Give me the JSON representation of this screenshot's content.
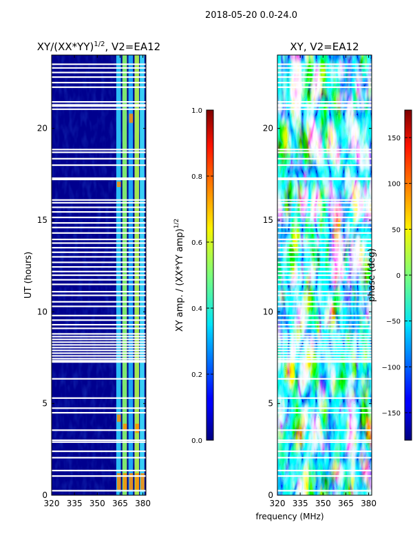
{
  "chart_data": {
    "suptitle": "2018-05-20 0.0-24.0",
    "xlabel": "frequency (MHz)",
    "panels": [
      {
        "type": "heatmap",
        "title_main": "XY/(XX*YY)",
        "title_sup": "1/2",
        "title_rest": ", V2=EA12",
        "ylabel": "UT (hours)",
        "xlim": [
          320,
          382
        ],
        "ylim": [
          0,
          24
        ],
        "xticks": [
          320,
          335,
          350,
          365,
          380
        ],
        "yticks": [
          0,
          5,
          10,
          15,
          20
        ],
        "colorbar": {
          "label_main": "XY amp. / (XX*YY amp)",
          "label_sup": "1/2",
          "range": [
            0.0,
            1.0
          ],
          "ticks": [
            "0.0",
            "0.2",
            "0.4",
            "0.6",
            "0.8",
            "1.0"
          ],
          "tick_values": [
            0.0,
            0.2,
            0.4,
            0.6,
            0.8,
            1.0
          ]
        }
      },
      {
        "type": "heatmap",
        "title": "XY, V2=EA12",
        "xlim": [
          320,
          382
        ],
        "ylim": [
          0,
          24
        ],
        "xticks": [
          320,
          335,
          350,
          365,
          380
        ],
        "yticks": [
          0,
          5,
          10,
          15,
          20
        ],
        "colorbar": {
          "label": "phase (deg)",
          "range": [
            -180,
            180
          ],
          "ticks": [
            "−150",
            "−100",
            "−50",
            "0",
            "50",
            "100",
            "150"
          ],
          "tick_values": [
            -150,
            -100,
            -50,
            0,
            50,
            100,
            150
          ]
        }
      }
    ],
    "flagged_ut_hours": [
      0.25,
      1.05,
      1.35,
      2.05,
      2.4,
      2.9,
      3.0,
      3.55,
      4.5,
      4.75,
      5.3,
      6.35,
      7.3,
      7.45,
      7.6,
      7.75,
      7.9,
      8.05,
      8.2,
      8.35,
      8.5,
      8.65,
      8.8,
      9.1,
      9.3,
      9.55,
      9.8,
      10.3,
      10.55,
      10.9,
      11.1,
      11.5,
      11.75,
      12.0,
      12.2,
      12.45,
      12.7,
      13.0,
      13.25,
      13.5,
      13.75,
      13.95,
      14.3,
      14.6,
      14.85,
      15.15,
      15.45,
      15.7,
      15.95,
      16.1,
      17.25,
      18.0,
      18.35,
      18.7,
      18.85,
      21.05,
      21.25,
      21.45,
      22.25,
      22.5,
      22.8,
      23.05,
      23.3,
      23.5
    ]
  }
}
